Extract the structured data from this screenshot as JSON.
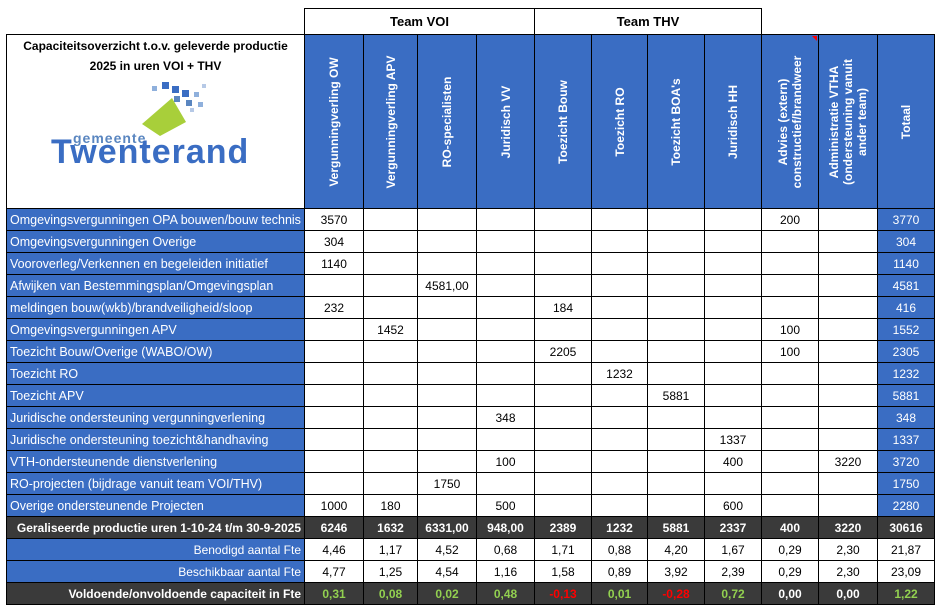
{
  "table": {
    "title": "Capaciteitsoverzicht t.o.v. geleverde productie 2025 in uren VOI + THV",
    "logo": {
      "top": "gemeente",
      "main": "Twenterand"
    },
    "team_voi": "Team VOI",
    "team_thv": "Team THV",
    "columns": [
      "Vergunningverling OW",
      "Vergunningverling APV",
      "RO-specialisten",
      "Juridisch VV",
      "Toezicht Bouw",
      "Toezicht RO",
      "Toezicht BOA's",
      "Juridisch HH",
      "Advies (extern) constructief/brandweer",
      "Administratie VTHA (ondersteuning vanuit ander team)",
      "Totaal"
    ],
    "rows": [
      {
        "label": "Omgevingsvergunningen OPA bouwen/bouw technis",
        "cells": [
          "3570",
          "",
          "",
          "",
          "",
          "",
          "",
          "",
          "200",
          "",
          "3770"
        ]
      },
      {
        "label": "Omgevingsvergunningen Overige",
        "cells": [
          "304",
          "",
          "",
          "",
          "",
          "",
          "",
          "",
          "",
          "",
          "304"
        ]
      },
      {
        "label": "Vooroverleg/Verkennen en begeleiden initiatief",
        "cells": [
          "1140",
          "",
          "",
          "",
          "",
          "",
          "",
          "",
          "",
          "",
          "1140"
        ]
      },
      {
        "label": "Afwijken van Bestemmingsplan/Omgevingsplan",
        "cells": [
          "",
          "",
          "4581,00",
          "",
          "",
          "",
          "",
          "",
          "",
          "",
          "4581"
        ]
      },
      {
        "label": "meldingen bouw(wkb)/brandveiligheid/sloop",
        "cells": [
          "232",
          "",
          "",
          "",
          "184",
          "",
          "",
          "",
          "",
          "",
          "416"
        ]
      },
      {
        "label": "Omgevingsvergunningen APV",
        "cells": [
          "",
          "1452",
          "",
          "",
          "",
          "",
          "",
          "",
          "100",
          "",
          "1552"
        ]
      },
      {
        "label": "Toezicht Bouw/Overige (WABO/OW)",
        "cells": [
          "",
          "",
          "",
          "",
          "2205",
          "",
          "",
          "",
          "100",
          "",
          "2305"
        ]
      },
      {
        "label": "Toezicht RO",
        "cells": [
          "",
          "",
          "",
          "",
          "",
          "1232",
          "",
          "",
          "",
          "",
          "1232"
        ]
      },
      {
        "label": "Toezicht APV",
        "cells": [
          "",
          "",
          "",
          "",
          "",
          "",
          "5881",
          "",
          "",
          "",
          "5881"
        ]
      },
      {
        "label": "Juridische ondersteuning vergunningverlening",
        "cells": [
          "",
          "",
          "",
          "348",
          "",
          "",
          "",
          "",
          "",
          "",
          "348"
        ]
      },
      {
        "label": "Juridische ondersteuning toezicht&handhaving",
        "cells": [
          "",
          "",
          "",
          "",
          "",
          "",
          "",
          "1337",
          "",
          "",
          "1337"
        ]
      },
      {
        "label": "VTH-ondersteunende dienstverlening",
        "cells": [
          "",
          "",
          "",
          "100",
          "",
          "",
          "",
          "400",
          "",
          "3220",
          "3720"
        ]
      },
      {
        "label": "RO-projecten (bijdrage vanuit team VOI/THV)",
        "cells": [
          "",
          "",
          "1750",
          "",
          "",
          "",
          "",
          "",
          "",
          "",
          "1750"
        ]
      },
      {
        "label": "Overige ondersteunende Projecten",
        "cells": [
          "1000",
          "180",
          "",
          "500",
          "",
          "",
          "",
          "600",
          "",
          "",
          "2280"
        ]
      }
    ],
    "production": {
      "label": "Geraliseerde productie uren 1-10-24 t/m 30-9-2025",
      "cells": [
        "6246",
        "1632",
        "6331,00",
        "948,00",
        "2389",
        "1232",
        "5881",
        "2337",
        "400",
        "3220",
        "30616"
      ]
    },
    "benodigd": {
      "label": "Benodigd aantal Fte",
      "cells": [
        "4,46",
        "1,17",
        "4,52",
        "0,68",
        "1,71",
        "0,88",
        "4,20",
        "1,67",
        "0,29",
        "2,30",
        "21,87"
      ]
    },
    "beschikbaar": {
      "label": "Beschikbaar aantal Fte",
      "cells": [
        "4,77",
        "1,25",
        "4,54",
        "1,16",
        "1,58",
        "0,89",
        "3,92",
        "2,39",
        "0,29",
        "2,30",
        "23,09"
      ]
    },
    "capacity": {
      "label": "Voldoende/onvoldoende capaciteit in Fte",
      "cells": [
        "0,31",
        "0,08",
        "0,02",
        "0,48",
        "-0,13",
        "0,01",
        "-0,28",
        "0,72",
        "0,00",
        "0,00",
        "1,22"
      ]
    },
    "capacity_status": [
      "pos",
      "pos",
      "pos",
      "pos",
      "neg",
      "pos",
      "neg",
      "pos",
      "zero",
      "zero",
      "pos"
    ],
    "colors": {
      "blue": "#3a6dc3",
      "dark": "#3a3a3a",
      "positive": "#92d050",
      "negative": "#ff0000"
    }
  }
}
